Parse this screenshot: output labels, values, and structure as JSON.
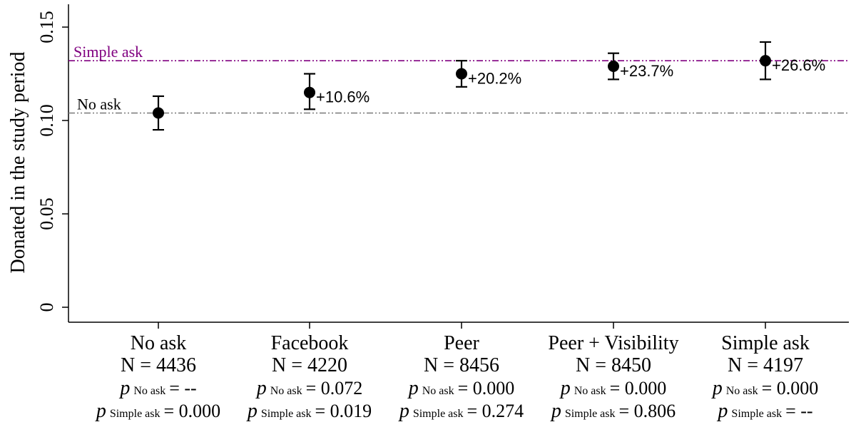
{
  "chart_data": {
    "type": "scatter",
    "title": "",
    "xlabel": "",
    "ylabel": "Donated in the study period",
    "ylim": [
      0,
      0.16
    ],
    "yticks": [
      "0",
      "0.05",
      "0.10",
      "0.15"
    ],
    "ytick_values": [
      0,
      0.05,
      0.1,
      0.15
    ],
    "grid": false,
    "categories": [
      "No ask",
      "Facebook",
      "Peer",
      "Peer + Visibility",
      "Simple ask"
    ],
    "points": [
      {
        "category": "No ask",
        "value": 0.104,
        "ci_low": 0.095,
        "ci_high": 0.113,
        "n_label": "N  = 4436",
        "p_no_ask_value": "= --",
        "p_simple_ask_value": "= 0.000",
        "change_label": ""
      },
      {
        "category": "Facebook",
        "value": 0.115,
        "ci_low": 0.106,
        "ci_high": 0.125,
        "n_label": "N = 4220",
        "p_no_ask_value": "= 0.072",
        "p_simple_ask_value": "= 0.019",
        "change_label": "+10.6%"
      },
      {
        "category": "Peer",
        "value": 0.125,
        "ci_low": 0.118,
        "ci_high": 0.132,
        "n_label": "N = 8456",
        "p_no_ask_value": "= 0.000",
        "p_simple_ask_value": "= 0.274",
        "change_label": "+20.2%"
      },
      {
        "category": "Peer + Visibility",
        "value": 0.129,
        "ci_low": 0.122,
        "ci_high": 0.136,
        "n_label": "N = 8450",
        "p_no_ask_value": "= 0.000",
        "p_simple_ask_value": "= 0.806",
        "change_label": "+23.7%"
      },
      {
        "category": "Simple ask",
        "value": 0.132,
        "ci_low": 0.122,
        "ci_high": 0.142,
        "n_label": "N = 4197",
        "p_no_ask_value": "= 0.000",
        "p_simple_ask_value": "= --",
        "change_label": "+26.6%"
      }
    ],
    "p_symbol": "p",
    "p_no_ask_subscript": "No ask",
    "p_simple_ask_subscript": "Simple ask",
    "reference_lines": [
      {
        "label": "Simple ask",
        "value": 0.132,
        "color": "#800080"
      },
      {
        "label": "No ask",
        "value": 0.104,
        "color": "#808080"
      }
    ],
    "marker_color": "#000000"
  }
}
